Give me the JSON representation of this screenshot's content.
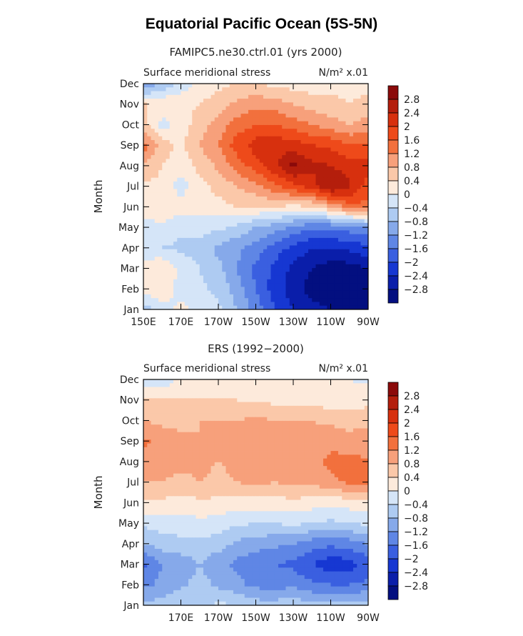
{
  "figure": {
    "title": "Equatorial Pacific Ocean (5S-5N)"
  },
  "colorscale": {
    "levels": [
      "2.8",
      "2.4",
      "2",
      "1.6",
      "1.2",
      "0.8",
      "0.4",
      "0",
      "−0.4",
      "−0.8",
      "−1.2",
      "−1.6",
      "−2",
      "−2.4",
      "−2.8"
    ],
    "colors": [
      "#8b0a0a",
      "#b41e0c",
      "#d7300e",
      "#ee4a1a",
      "#f2703d",
      "#f7a07b",
      "#fbc8a9",
      "#fdeadb",
      "#d5e5f8",
      "#aecbf2",
      "#86a9ea",
      "#5f86e5",
      "#3a5fe0",
      "#1637d2",
      "#0a1eaa",
      "#030f80"
    ]
  },
  "chart_data": [
    {
      "type": "heatmap",
      "subtitle": "FAMIPC5.ne30.ctrl.01 (yrs 2000)",
      "left_label": "Surface meridional stress",
      "right_label": "N/m² x.01",
      "ylabel": "Month",
      "xlabel": "",
      "y_ticks": [
        "Jan",
        "Feb",
        "Mar",
        "Apr",
        "May",
        "Jun",
        "Jul",
        "Aug",
        "Sep",
        "Oct",
        "Nov",
        "Dec"
      ],
      "x_ticks": [
        "150E",
        "170E",
        "170W",
        "150W",
        "130W",
        "110W",
        "90W"
      ],
      "x_lon": [
        150,
        170,
        190,
        210,
        230,
        250,
        270
      ],
      "lon_range": [
        150,
        270
      ],
      "months": [
        1,
        2,
        3,
        4,
        5,
        6,
        7,
        8,
        9,
        10,
        11,
        12
      ],
      "lons": [
        150,
        160,
        170,
        180,
        190,
        200,
        210,
        220,
        230,
        240,
        250,
        260,
        270
      ],
      "values": [
        [
          -0.6,
          -0.2,
          0.1,
          -0.1,
          -0.3,
          -0.8,
          -1.4,
          -2.0,
          -2.4,
          -2.6,
          -2.8,
          -3.0,
          -2.9
        ],
        [
          0.2,
          0.3,
          -0.2,
          -0.3,
          -0.5,
          -1.0,
          -1.6,
          -2.2,
          -2.6,
          -3.0,
          -3.2,
          -3.2,
          -3.0
        ],
        [
          0.3,
          0.4,
          -0.1,
          -0.4,
          -0.7,
          -1.2,
          -1.7,
          -2.1,
          -2.5,
          -2.8,
          -3.0,
          -3.0,
          -2.8
        ],
        [
          -0.4,
          -0.4,
          -0.5,
          -0.6,
          -0.9,
          -1.1,
          -1.4,
          -1.8,
          -2.1,
          -2.4,
          -2.4,
          -2.3,
          -2.1
        ],
        [
          -0.2,
          -0.1,
          -0.3,
          -0.2,
          -0.3,
          -0.5,
          -0.8,
          -1.0,
          -1.3,
          -1.5,
          -1.5,
          -1.4,
          -1.2
        ],
        [
          0.3,
          0.3,
          0.2,
          0.2,
          0.3,
          0.4,
          0.4,
          0.4,
          0.3,
          0.4,
          0.8,
          1.4,
          1.5
        ],
        [
          0.3,
          0.3,
          -0.2,
          0.3,
          0.5,
          0.8,
          1.1,
          1.5,
          1.9,
          2.2,
          2.9,
          2.5,
          1.8
        ],
        [
          0.8,
          0.4,
          0.2,
          0.5,
          0.9,
          1.4,
          1.8,
          2.3,
          2.9,
          2.5,
          2.4,
          2.2,
          2.2
        ],
        [
          1.4,
          0.6,
          0.3,
          0.8,
          1.2,
          1.8,
          2.2,
          2.3,
          2.2,
          2.0,
          1.9,
          1.6,
          1.7
        ],
        [
          0.6,
          -0.2,
          0.2,
          0.6,
          1.0,
          1.4,
          1.6,
          1.6,
          1.4,
          1.2,
          1.0,
          0.8,
          1.0
        ],
        [
          0.4,
          0.4,
          0.3,
          0.4,
          0.6,
          0.9,
          1.1,
          1.0,
          0.8,
          0.6,
          0.5,
          0.4,
          0.5
        ],
        [
          -1.2,
          -0.8,
          -0.3,
          0.1,
          0.3,
          0.4,
          0.4,
          0.3,
          0.2,
          0.2,
          0.3,
          0.3,
          0.3
        ]
      ]
    },
    {
      "type": "heatmap",
      "subtitle": "ERS (1992−2000)",
      "left_label": "Surface meridional stress",
      "right_label": "N/m² x.01",
      "ylabel": "Month",
      "xlabel": "",
      "y_ticks": [
        "Jan",
        "Feb",
        "Mar",
        "Apr",
        "May",
        "Jun",
        "Jul",
        "Aug",
        "Sep",
        "Oct",
        "Nov",
        "Dec"
      ],
      "x_ticks": [
        "170E",
        "170W",
        "150W",
        "130W",
        "110W",
        "90W"
      ],
      "x_lon": [
        170,
        190,
        210,
        230,
        250,
        270
      ],
      "lon_range": [
        150,
        270
      ],
      "months": [
        1,
        2,
        3,
        4,
        5,
        6,
        7,
        8,
        9,
        10,
        11,
        12
      ],
      "lons": [
        150,
        160,
        170,
        180,
        190,
        200,
        210,
        220,
        230,
        240,
        250,
        260,
        270
      ],
      "values": [
        [
          -0.7,
          -0.6,
          -0.4,
          -0.5,
          -0.3,
          -0.4,
          -0.6,
          -0.6,
          -0.5,
          -0.7,
          -0.7,
          -0.6,
          -0.6
        ],
        [
          -1.3,
          -1.1,
          -0.9,
          -0.6,
          -0.9,
          -1.1,
          -1.3,
          -1.4,
          -1.3,
          -1.5,
          -1.6,
          -1.6,
          -1.5
        ],
        [
          -1.7,
          -1.2,
          -1.1,
          -0.8,
          -1.1,
          -1.3,
          -1.5,
          -1.6,
          -1.7,
          -2.0,
          -2.3,
          -2.2,
          -1.8
        ],
        [
          -0.8,
          -0.6,
          -0.5,
          -0.5,
          -0.6,
          -0.9,
          -1.0,
          -1.1,
          -1.2,
          -1.4,
          -1.5,
          -1.4,
          -1.2
        ],
        [
          -0.3,
          -0.2,
          -0.2,
          -0.1,
          -0.2,
          -0.3,
          -0.4,
          -0.4,
          -0.3,
          -0.4,
          -0.5,
          -0.4,
          -0.3
        ],
        [
          0.3,
          0.3,
          0.2,
          0.3,
          0.3,
          0.2,
          0.2,
          0.2,
          0.3,
          0.2,
          0.1,
          0.2,
          0.3
        ],
        [
          0.8,
          0.8,
          0.7,
          0.8,
          0.7,
          0.8,
          0.9,
          0.8,
          0.9,
          0.9,
          1.1,
          1.3,
          1.4
        ],
        [
          1.1,
          1.0,
          0.9,
          0.9,
          0.8,
          0.9,
          1.0,
          0.9,
          1.0,
          1.1,
          1.3,
          1.3,
          1.2
        ],
        [
          1.3,
          1.0,
          0.9,
          0.8,
          0.9,
          0.9,
          1.0,
          1.0,
          0.9,
          1.0,
          1.1,
          1.0,
          1.1
        ],
        [
          0.8,
          0.7,
          0.7,
          0.8,
          0.8,
          0.8,
          0.9,
          0.8,
          0.8,
          0.8,
          0.7,
          0.6,
          0.6
        ],
        [
          0.4,
          0.5,
          0.4,
          0.4,
          0.4,
          0.4,
          0.3,
          0.3,
          0.3,
          0.2,
          0.2,
          0.2,
          0.3
        ],
        [
          -0.2,
          -0.3,
          0.1,
          0.2,
          0.1,
          0.1,
          0.1,
          0.0,
          0.1,
          0.1,
          0.1,
          0.0,
          -0.1
        ]
      ]
    }
  ]
}
